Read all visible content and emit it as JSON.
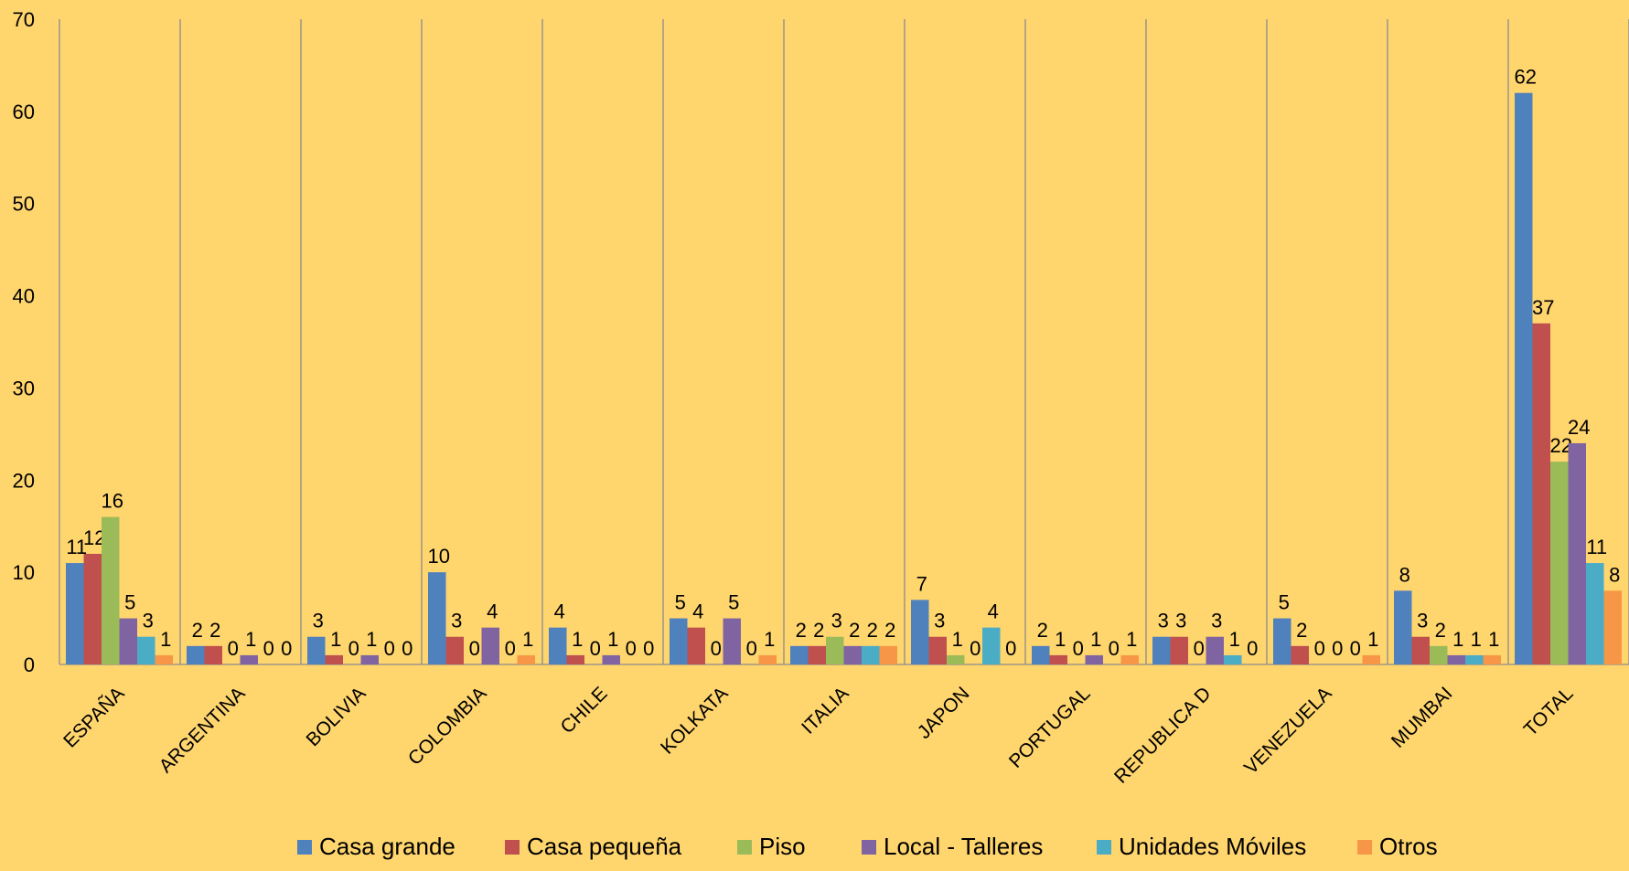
{
  "chart_data": {
    "type": "bar",
    "title": "",
    "xlabel": "",
    "ylabel": "",
    "ylim": [
      0,
      70
    ],
    "yticks": [
      0,
      10,
      20,
      30,
      40,
      50,
      60,
      70
    ],
    "grid": "vertical category separators",
    "legend_position": "bottom",
    "categories": [
      "ESPAÑA",
      "ARGENTINA",
      "BOLIVIA",
      "COLOMBIA",
      "CHILE",
      "KOLKATA",
      "ITALIA",
      "JAPON",
      "PORTUGAL",
      "REPUBLICA D",
      "VENEZUELA",
      "MUMBAI",
      "TOTAL"
    ],
    "series": [
      {
        "name": "Casa grande",
        "color": "#4F81BD",
        "values": [
          11,
          2,
          3,
          10,
          4,
          5,
          2,
          7,
          2,
          3,
          5,
          8,
          62
        ]
      },
      {
        "name": "Casa pequeña",
        "color": "#C0504D",
        "values": [
          12,
          2,
          1,
          3,
          1,
          4,
          2,
          3,
          1,
          3,
          2,
          3,
          37
        ]
      },
      {
        "name": "Piso",
        "color": "#9BBB59",
        "values": [
          16,
          0,
          0,
          0,
          0,
          0,
          3,
          1,
          0,
          0,
          0,
          2,
          22
        ]
      },
      {
        "name": "Local - Talleres",
        "color": "#8064A2",
        "values": [
          5,
          1,
          1,
          4,
          1,
          5,
          2,
          0,
          1,
          3,
          0,
          1,
          24
        ]
      },
      {
        "name": "Unidades Móviles",
        "color": "#4BACC6",
        "values": [
          3,
          0,
          0,
          0,
          0,
          0,
          2,
          4,
          0,
          1,
          0,
          1,
          11
        ]
      },
      {
        "name": "Otros",
        "color": "#F79646",
        "values": [
          1,
          0,
          0,
          1,
          0,
          1,
          2,
          0,
          1,
          0,
          1,
          1,
          8
        ]
      }
    ]
  }
}
